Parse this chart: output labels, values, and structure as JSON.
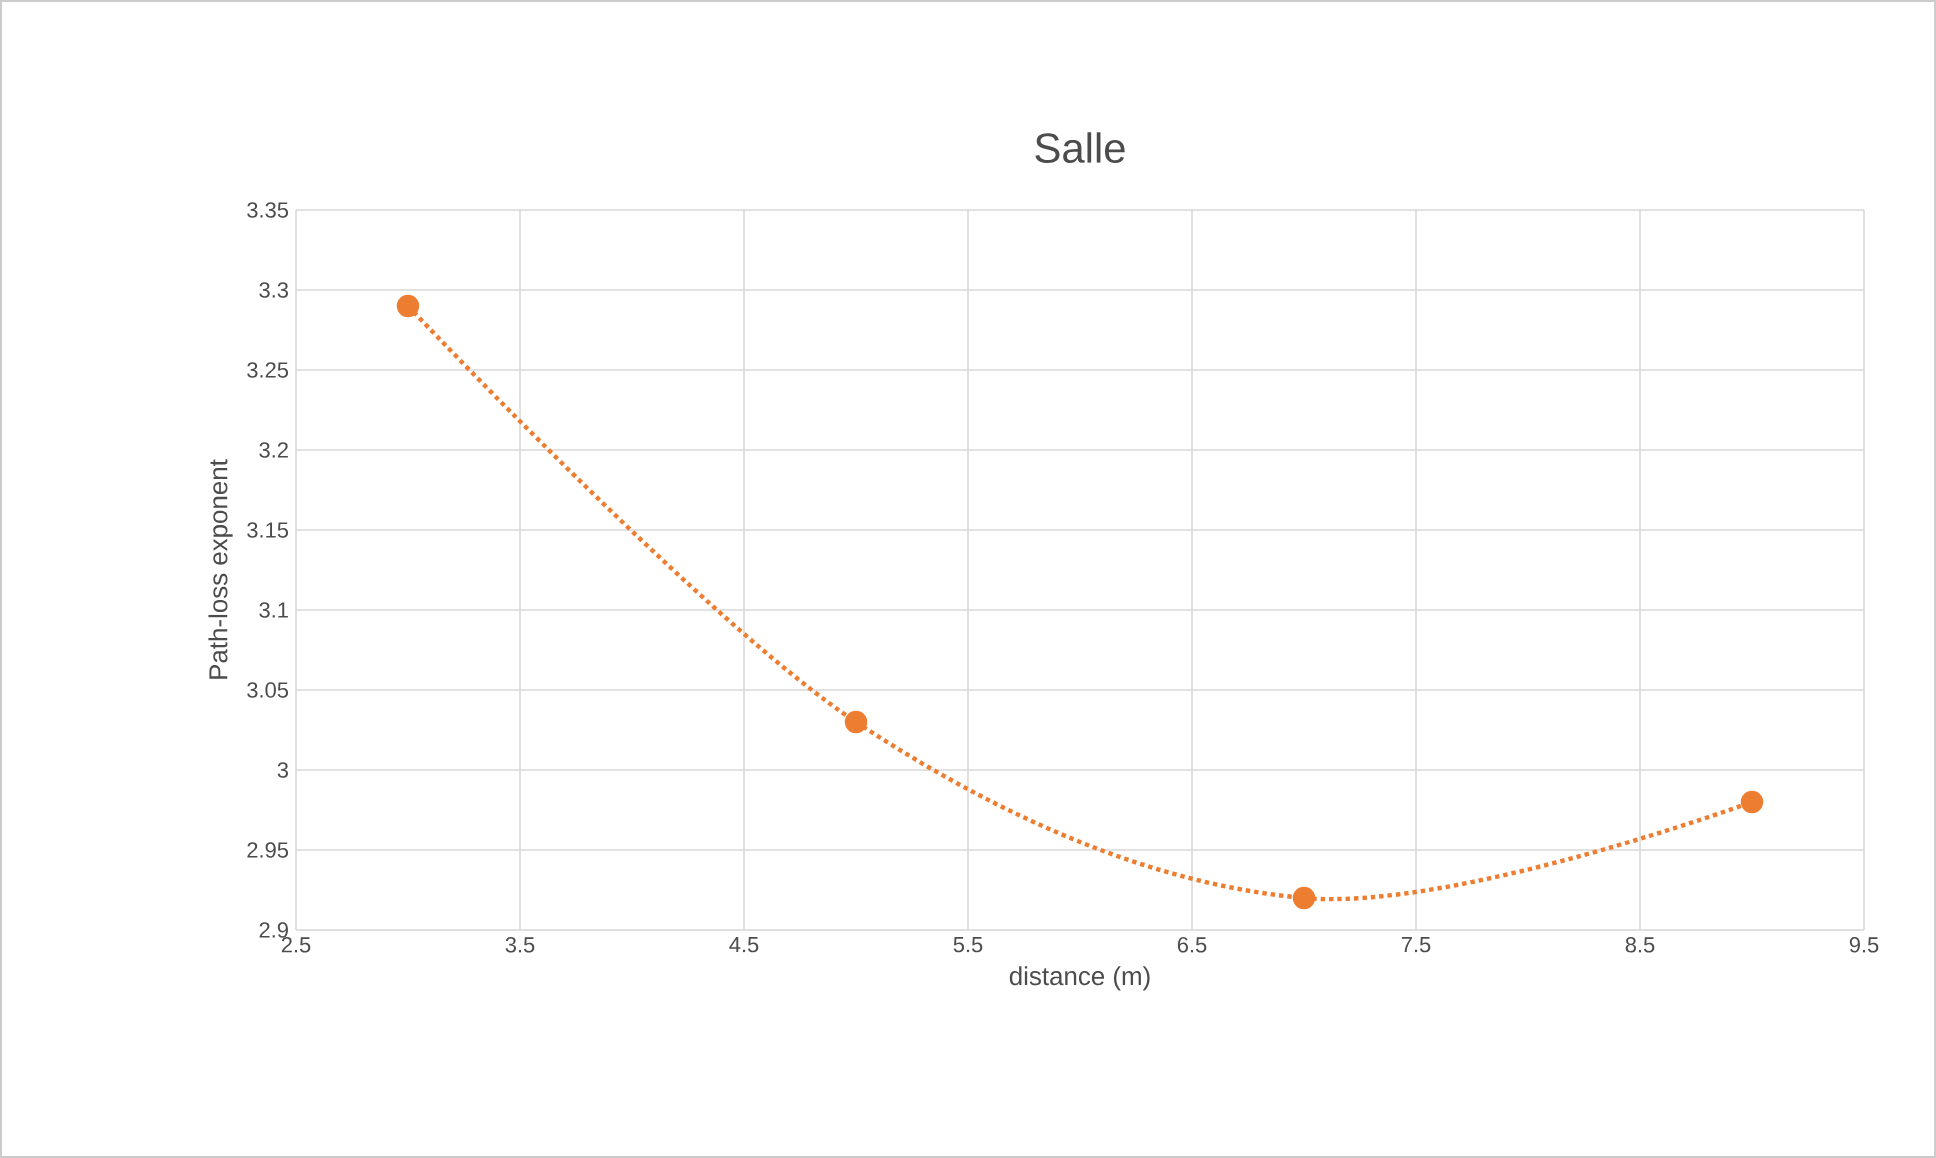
{
  "chart_data": {
    "type": "line",
    "title": "Salle",
    "xlabel": "distance (m)",
    "ylabel": "Path-loss exponent",
    "x": [
      3,
      5,
      7,
      9
    ],
    "values": [
      3.29,
      3.03,
      2.92,
      2.98
    ],
    "color": "#ed7d31",
    "xlim": [
      2.5,
      9.5
    ],
    "ylim": [
      2.9,
      3.35
    ],
    "xticks": [
      2.5,
      3.5,
      4.5,
      5.5,
      6.5,
      7.5,
      8.5,
      9.5
    ],
    "yticks": [
      2.9,
      2.95,
      3,
      3.05,
      3.1,
      3.15,
      3.2,
      3.25,
      3.3,
      3.35
    ],
    "grid": true,
    "marker": "circle",
    "line_style": "dotted"
  }
}
